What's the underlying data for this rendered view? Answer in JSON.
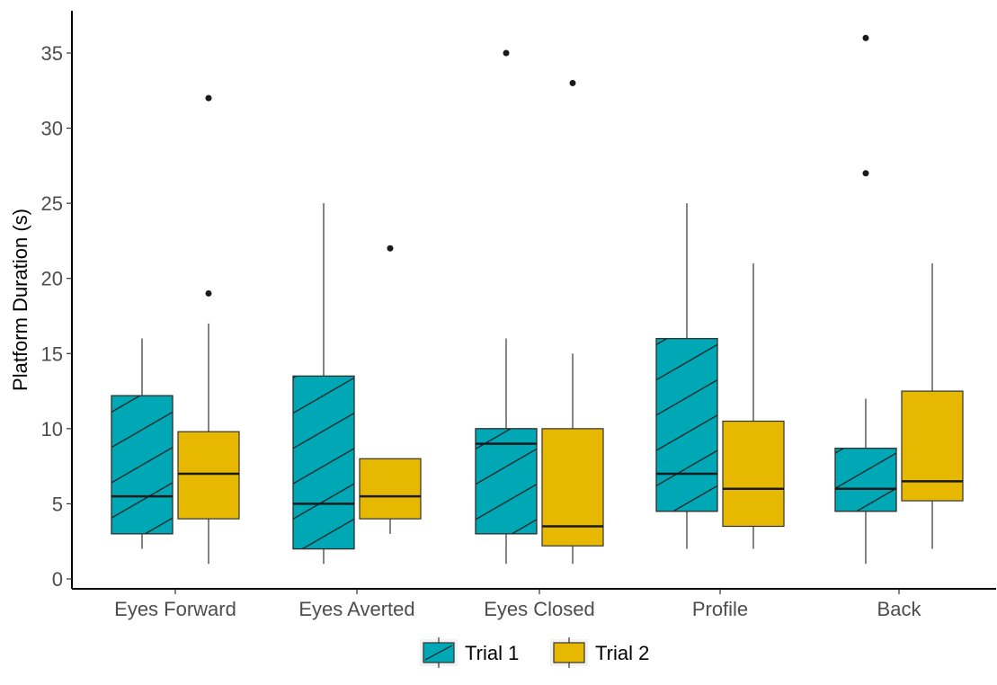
{
  "chart_data": {
    "type": "box",
    "title": "",
    "xlabel": "",
    "ylabel": "Platform Duration (s)",
    "ylim": [
      0,
      37
    ],
    "yticks": [
      0,
      5,
      10,
      15,
      20,
      25,
      30,
      35
    ],
    "categories": [
      "Eyes Forward",
      "Eyes Averted",
      "Eyes Closed",
      "Profile",
      "Back"
    ],
    "grid": false,
    "legend_position": "bottom",
    "series": [
      {
        "name": "Trial 1",
        "color": "#00A8B5",
        "pattern": "diagonal-stripes",
        "boxes": [
          {
            "min": 2,
            "q1": 3,
            "median": 5.5,
            "q3": 12.2,
            "max": 16,
            "outliers": []
          },
          {
            "min": 1,
            "q1": 2,
            "median": 5,
            "q3": 13.5,
            "max": 25,
            "outliers": []
          },
          {
            "min": 1,
            "q1": 3,
            "median": 9,
            "q3": 10,
            "max": 16,
            "outliers": [
              35
            ]
          },
          {
            "min": 2,
            "q1": 4.5,
            "median": 7,
            "q3": 16,
            "max": 25,
            "outliers": []
          },
          {
            "min": 1,
            "q1": 4.5,
            "median": 6,
            "q3": 8.7,
            "max": 12,
            "outliers": [
              27,
              36
            ]
          }
        ]
      },
      {
        "name": "Trial 2",
        "color": "#E6B800",
        "pattern": "none",
        "boxes": [
          {
            "min": 1,
            "q1": 4,
            "median": 7,
            "q3": 9.8,
            "max": 17,
            "outliers": [
              19,
              32
            ]
          },
          {
            "min": 3,
            "q1": 4,
            "median": 5.5,
            "q3": 8,
            "max": 8,
            "outliers": [
              22
            ]
          },
          {
            "min": 1,
            "q1": 2.2,
            "median": 3.5,
            "q3": 10,
            "max": 15,
            "outliers": [
              33
            ]
          },
          {
            "min": 2,
            "q1": 3.5,
            "median": 6,
            "q3": 10.5,
            "max": 21,
            "outliers": []
          },
          {
            "min": 2,
            "q1": 5.2,
            "median": 6.5,
            "q3": 12.5,
            "max": 21,
            "outliers": []
          }
        ]
      }
    ]
  }
}
